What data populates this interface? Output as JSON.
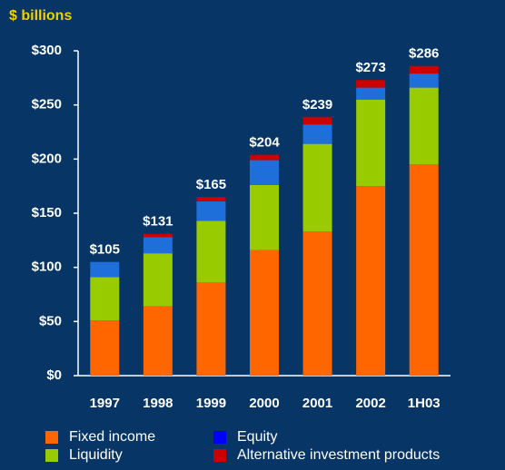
{
  "chart_data": {
    "type": "stacked_bar",
    "title": "$ billions",
    "categories": [
      "1997",
      "1998",
      "1999",
      "2000",
      "2001",
      "2002",
      "1H03"
    ],
    "series": [
      {
        "name": "Fixed income",
        "color": "#ff6600",
        "values": [
          51,
          64,
          86,
          116,
          133,
          175,
          195
        ]
      },
      {
        "name": "Liquidity",
        "color": "#99cc00",
        "values": [
          40,
          49,
          57,
          60,
          81,
          80,
          71
        ]
      },
      {
        "name": "Equity",
        "color": "#1e6fd9",
        "legend_color": "#0000ff",
        "values": [
          14,
          15,
          18,
          23,
          18,
          11,
          13
        ]
      },
      {
        "name": "Alternative investment products",
        "color": "#cc0000",
        "values": [
          0,
          3,
          4,
          5,
          7,
          7,
          7
        ]
      }
    ],
    "totals": [
      105,
      131,
      165,
      204,
      239,
      273,
      286
    ],
    "total_labels": [
      "$105",
      "$131",
      "$165",
      "$204",
      "$239",
      "$273",
      "$286"
    ],
    "ylim": [
      0,
      300
    ],
    "yticks": [
      {
        "value": 0,
        "label": "$0"
      },
      {
        "value": 50,
        "label": "$50"
      },
      {
        "value": 100,
        "label": "$100"
      },
      {
        "value": 150,
        "label": "$150"
      },
      {
        "value": 200,
        "label": "$200"
      },
      {
        "value": 250,
        "label": "$250"
      },
      {
        "value": 300,
        "label": "$300"
      }
    ],
    "grid": false
  }
}
